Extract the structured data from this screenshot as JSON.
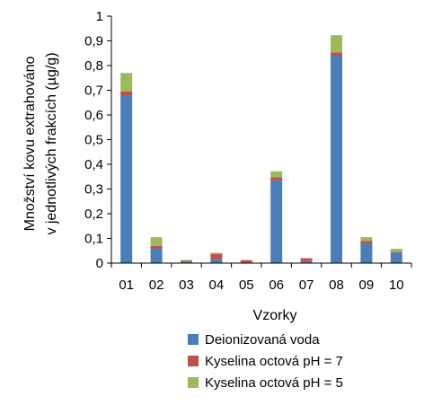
{
  "chart_data": {
    "type": "bar",
    "stacked": true,
    "categories": [
      "01",
      "02",
      "03",
      "04",
      "05",
      "06",
      "07",
      "08",
      "09",
      "10"
    ],
    "series": [
      {
        "name": "Deionizovaná voda",
        "color": "#4A7EBB",
        "values": [
          0.68,
          0.06,
          0.005,
          0.015,
          0.002,
          0.335,
          0.008,
          0.84,
          0.08,
          0.043
        ]
      },
      {
        "name": "Kyselina octová pH = 7",
        "color": "#C0504D",
        "values": [
          0.015,
          0.01,
          0.005,
          0.022,
          0.01,
          0.012,
          0.012,
          0.013,
          0.01,
          0.003
        ]
      },
      {
        "name": "Kyselina octová pH = 5",
        "color": "#9BBB59",
        "values": [
          0.075,
          0.035,
          0.003,
          0.005,
          0.0,
          0.025,
          0.0,
          0.07,
          0.015,
          0.012
        ]
      }
    ],
    "ylim": [
      0,
      1
    ],
    "yticks": [
      "0",
      "0,1",
      "0,2",
      "0,3",
      "0,4",
      "0,5",
      "0,6",
      "0,7",
      "0,8",
      "0,9",
      "1"
    ],
    "xlabel": "Vzorky",
    "ylabel": [
      "Množství kovu extrahováno",
      "v jednotlivých frakcích (µg/g)"
    ],
    "grid": false,
    "legend": "bottom"
  }
}
